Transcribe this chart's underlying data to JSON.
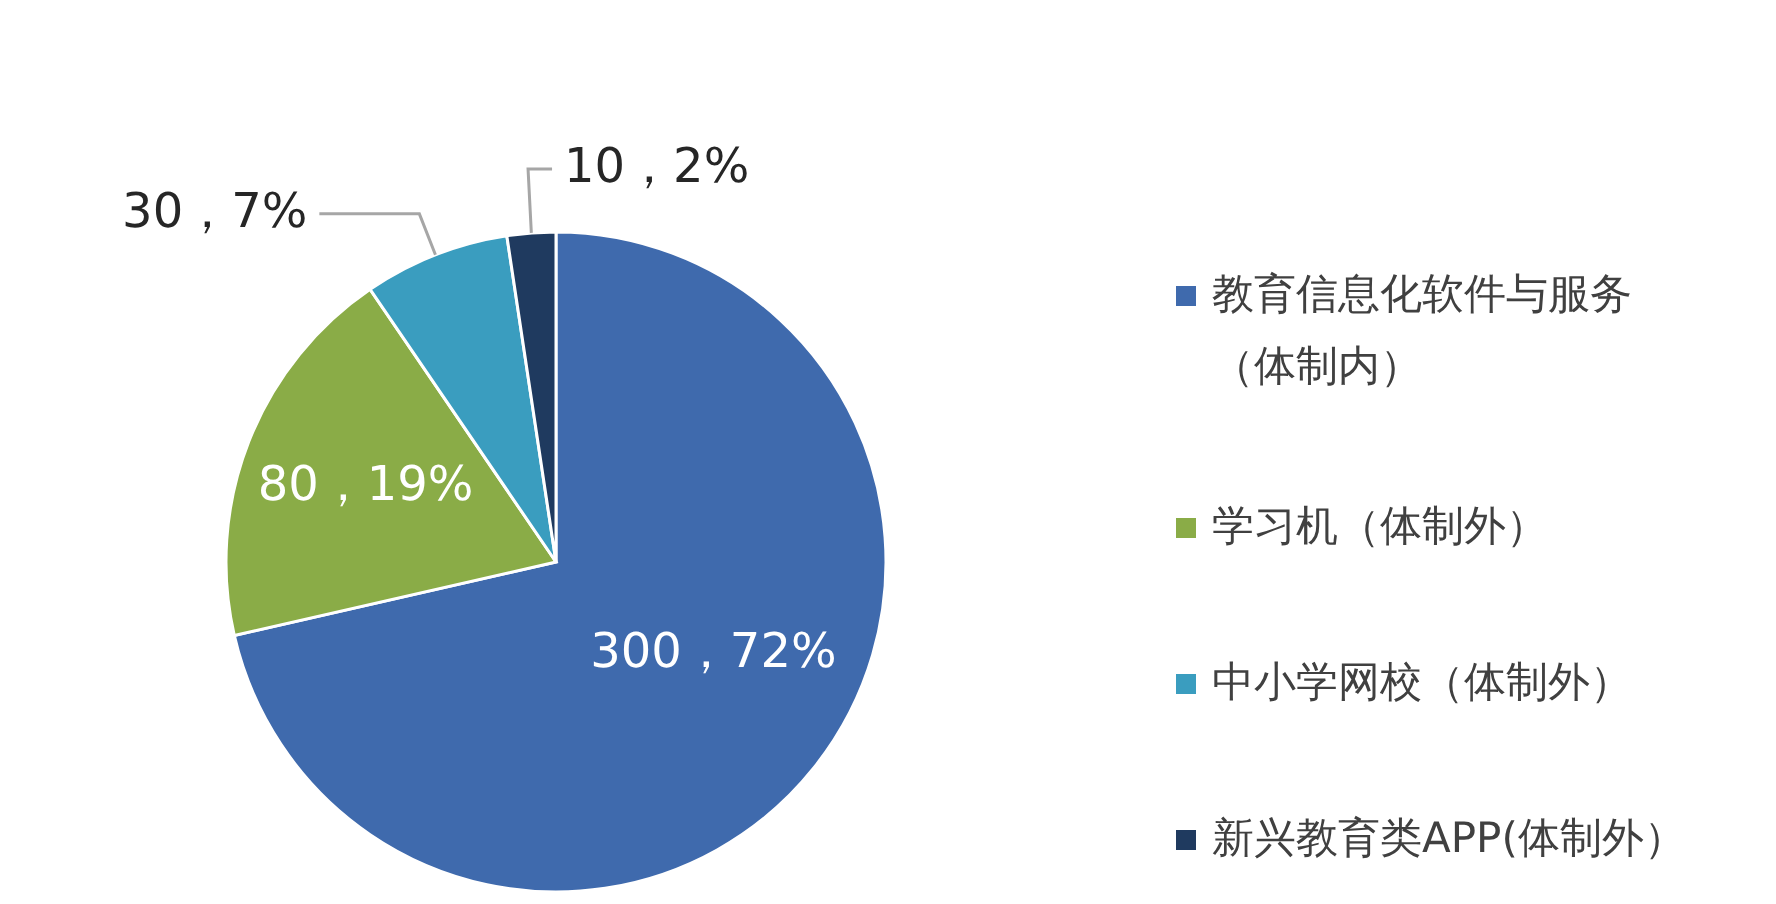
{
  "chart_data": {
    "type": "pie",
    "categories": [
      "教育信息化软件与服务（体制内）",
      "学习机（体制外）",
      "中小学网校（体制外）",
      "新兴教育类APP(体制外）"
    ],
    "values": [
      300,
      80,
      30,
      10
    ],
    "colors": [
      "#3f6aad",
      "#8aac47",
      "#3a9dbf",
      "#1f3a5f"
    ],
    "value_labels": [
      "300，72%",
      "80，19%",
      "30，7%",
      "10，2%"
    ],
    "legend": "right"
  }
}
